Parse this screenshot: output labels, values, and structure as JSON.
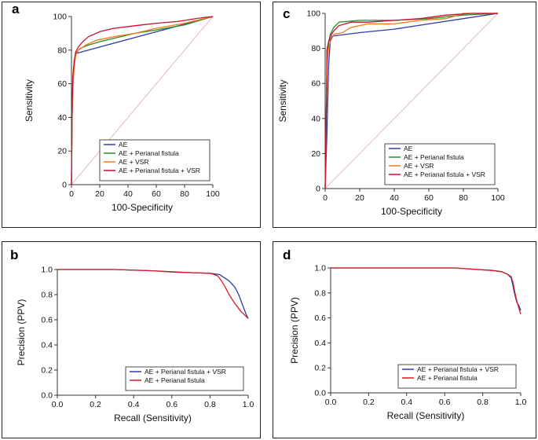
{
  "chart_data": [
    {
      "panel": "a",
      "type": "line",
      "xlabel": "100-Specificity",
      "ylabel": "Sensitivity",
      "xlim": [
        0,
        100
      ],
      "ylim": [
        0,
        100
      ],
      "xticks": [
        0,
        20,
        40,
        60,
        80,
        100
      ],
      "yticks": [
        0,
        20,
        40,
        60,
        80,
        100
      ],
      "diagonal": true,
      "legend_position": "bottom-right",
      "series": [
        {
          "name": "AE",
          "color": "#2b3ea8",
          "x": [
            0,
            0.3,
            0.8,
            1.5,
            2.2,
            3,
            100
          ],
          "y": [
            0,
            28,
            55,
            68,
            74,
            78,
            100
          ]
        },
        {
          "name": "AE + Perianal fistula",
          "color": "#2e8b2e",
          "x": [
            0,
            0.5,
            1.2,
            2,
            3,
            6,
            12,
            20,
            30,
            45,
            60,
            80,
            100
          ],
          "y": [
            0,
            45,
            62,
            72,
            78,
            81,
            83,
            85,
            87,
            90,
            92,
            95,
            100
          ]
        },
        {
          "name": "AE + VSR",
          "color": "#f07a1a",
          "x": [
            0,
            0.5,
            1,
            2,
            3,
            5,
            10,
            18,
            30,
            45,
            60,
            80,
            100
          ],
          "y": [
            0,
            42,
            58,
            70,
            77,
            80,
            83,
            86,
            88,
            90,
            93,
            96,
            100
          ]
        },
        {
          "name": "AE + Perianal fistula + VSR",
          "color": "#c8102e",
          "x": [
            0,
            0.5,
            1,
            2,
            3,
            5,
            8,
            12,
            20,
            30,
            40,
            50,
            60,
            75,
            90,
            100
          ],
          "y": [
            0,
            50,
            65,
            74,
            79,
            82,
            85,
            88,
            91,
            93,
            94,
            95,
            96,
            97,
            99,
            100
          ]
        }
      ]
    },
    {
      "panel": "c",
      "type": "line",
      "xlabel": "100-Specificity",
      "ylabel": "Sensitivity",
      "xlim": [
        0,
        100
      ],
      "ylim": [
        0,
        100
      ],
      "xticks": [
        0,
        20,
        40,
        60,
        80,
        100
      ],
      "yticks": [
        0,
        20,
        40,
        60,
        80,
        100
      ],
      "diagonal": true,
      "legend_position": "bottom-right",
      "series": [
        {
          "name": "AE",
          "color": "#2b3ea8",
          "x": [
            0,
            1,
            2,
            3,
            4,
            20,
            40,
            60,
            80,
            100
          ],
          "y": [
            0,
            30,
            70,
            85,
            87,
            89,
            91,
            94,
            97,
            100
          ]
        },
        {
          "name": "AE + Perianal fistula",
          "color": "#2e8b2e",
          "x": [
            0,
            1,
            1,
            2,
            3,
            5,
            8,
            20,
            40,
            60,
            80,
            100
          ],
          "y": [
            0,
            65,
            75,
            83,
            88,
            92,
            95,
            96,
            96,
            97,
            99,
            100
          ]
        },
        {
          "name": "AE + VSR",
          "color": "#f07a1a",
          "x": [
            0,
            1,
            1,
            2,
            3,
            5,
            10,
            15,
            25,
            40,
            55,
            70,
            80,
            100
          ],
          "y": [
            0,
            60,
            70,
            80,
            84,
            88,
            89,
            92,
            94,
            94,
            96,
            97,
            100,
            100
          ]
        },
        {
          "name": "AE + Perianal fistula + VSR",
          "color": "#c8102e",
          "x": [
            0,
            1,
            1,
            2,
            3,
            5,
            8,
            15,
            25,
            40,
            55,
            70,
            85,
            100
          ],
          "y": [
            0,
            70,
            79,
            84,
            87,
            90,
            93,
            95,
            95,
            96,
            97,
            99,
            100,
            100
          ]
        }
      ]
    },
    {
      "panel": "b",
      "type": "line",
      "xlabel": "Recall (Sensitivity)",
      "ylabel": "Precision (PPV)",
      "xlim": [
        0,
        1
      ],
      "ylim": [
        0,
        1
      ],
      "xticks": [
        0.0,
        0.2,
        0.4,
        0.6,
        0.8,
        1.0
      ],
      "yticks": [
        0.0,
        0.2,
        0.4,
        0.6,
        0.8,
        1.0
      ],
      "legend_position": "bottom-right",
      "series": [
        {
          "name": "AE + Perianal fistula + VSR",
          "color": "#2b3ea8",
          "x": [
            0,
            0.3,
            0.5,
            0.6,
            0.7,
            0.8,
            0.85,
            0.88,
            0.9,
            0.93,
            0.95,
            0.97,
            0.99,
            1.0
          ],
          "y": [
            1.0,
            1.0,
            0.99,
            0.98,
            0.975,
            0.97,
            0.96,
            0.93,
            0.91,
            0.86,
            0.8,
            0.72,
            0.64,
            0.61
          ]
        },
        {
          "name": "AE + Perianal fistula",
          "color": "#d81b1b",
          "x": [
            0,
            0.3,
            0.5,
            0.7,
            0.8,
            0.84,
            0.86,
            0.88,
            0.9,
            0.93,
            0.96,
            0.98,
            1.0
          ],
          "y": [
            1.0,
            1.0,
            0.99,
            0.975,
            0.97,
            0.95,
            0.91,
            0.86,
            0.8,
            0.73,
            0.67,
            0.64,
            0.61
          ]
        }
      ]
    },
    {
      "panel": "d",
      "type": "line",
      "xlabel": "Recall (Sensitivity)",
      "ylabel": "Precision (PPV)",
      "xlim": [
        0,
        1
      ],
      "ylim": [
        0,
        1
      ],
      "xticks": [
        0.0,
        0.2,
        0.4,
        0.6,
        0.8,
        1.0
      ],
      "yticks": [
        0.0,
        0.2,
        0.4,
        0.6,
        0.8,
        1.0
      ],
      "legend_position": "bottom-right",
      "series": [
        {
          "name": "AE + Perianal fistula + VSR",
          "color": "#2b3ea8",
          "x": [
            0,
            0.4,
            0.65,
            0.75,
            0.85,
            0.9,
            0.93,
            0.95,
            0.96,
            0.97,
            0.98,
            0.99,
            1.0
          ],
          "y": [
            1.0,
            1.0,
            1.0,
            0.99,
            0.98,
            0.97,
            0.95,
            0.92,
            0.85,
            0.78,
            0.72,
            0.7,
            0.66
          ]
        },
        {
          "name": "AE + Perianal fistula",
          "color": "#d81b1b",
          "x": [
            0,
            0.4,
            0.65,
            0.75,
            0.85,
            0.9,
            0.93,
            0.95,
            0.96,
            0.97,
            0.98,
            0.99,
            1.0
          ],
          "y": [
            1.0,
            1.0,
            1.0,
            0.99,
            0.98,
            0.97,
            0.95,
            0.93,
            0.88,
            0.8,
            0.73,
            0.68,
            0.63
          ]
        }
      ]
    }
  ]
}
